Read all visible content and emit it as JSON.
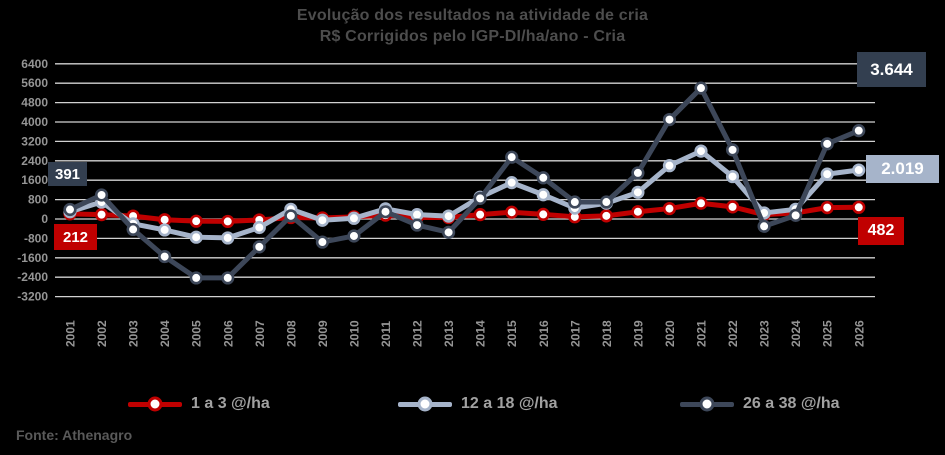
{
  "title": {
    "line1": "Evolução dos resultados na atividade de cria",
    "line2": "R$ Corrigidos pelo IGP-DI/ha/ano - Cria"
  },
  "source": "Fonte: Athenagro",
  "callouts": {
    "start_dark": "391",
    "start_red": "212",
    "end_dark": "3.644",
    "end_light": "2.019",
    "end_red": "482"
  },
  "colors": {
    "background": "#000000",
    "gridline": "#d2d2d2",
    "title_text": "#4d4d4d",
    "axis_text": "#959595",
    "legend_text": "#a1a1a1",
    "source_text": "#595959",
    "red_series": "#c00000",
    "light_series": "#a6b4ca",
    "dark_series": "#3d4759",
    "dark_box": "#333f50"
  },
  "chart_data": {
    "type": "line",
    "title": "Evolução dos resultados na atividade de cria — R$ Corrigidos pelo IGP-DI/ha/ano - Cria",
    "x": [
      "2001",
      "2002",
      "2003",
      "2004",
      "2005",
      "2006",
      "2007",
      "2008",
      "2009",
      "2010",
      "2011",
      "2012",
      "2013",
      "2014",
      "2015",
      "2016",
      "2017",
      "2018",
      "2019",
      "2020",
      "2021",
      "2022",
      "2023",
      "2024",
      "2025",
      "2026"
    ],
    "ylim": [
      -3200,
      6400
    ],
    "ytick_step": 800,
    "yticks": [
      "6400",
      "5600",
      "4800",
      "4000",
      "3200",
      "2400",
      "1600",
      "800",
      "0",
      "-800",
      "-1600",
      "-2400",
      "-3200"
    ],
    "grid": true,
    "legend_position": "bottom",
    "series": [
      {
        "name": "1 a 3 @/ha",
        "color": "#c00000",
        "values": [
          212,
          180,
          120,
          -30,
          -90,
          -100,
          -40,
          60,
          40,
          90,
          160,
          60,
          60,
          180,
          280,
          190,
          90,
          130,
          300,
          430,
          650,
          500,
          180,
          250,
          470,
          482
        ]
      },
      {
        "name": "12 a 18 @/ha",
        "color": "#a6b4ca",
        "values": [
          300,
          700,
          -200,
          -450,
          -750,
          -780,
          -350,
          400,
          -50,
          30,
          420,
          180,
          120,
          900,
          1500,
          1000,
          450,
          650,
          1100,
          2200,
          2800,
          1750,
          250,
          400,
          1850,
          2019
        ]
      },
      {
        "name": "26 a 38 @/ha",
        "color": "#3d4759",
        "values": [
          391,
          990,
          -430,
          -1550,
          -2430,
          -2430,
          -1150,
          130,
          -950,
          -700,
          300,
          -250,
          -550,
          850,
          2550,
          1700,
          700,
          700,
          1900,
          4100,
          5400,
          2850,
          -300,
          150,
          3100,
          3644
        ]
      }
    ]
  }
}
